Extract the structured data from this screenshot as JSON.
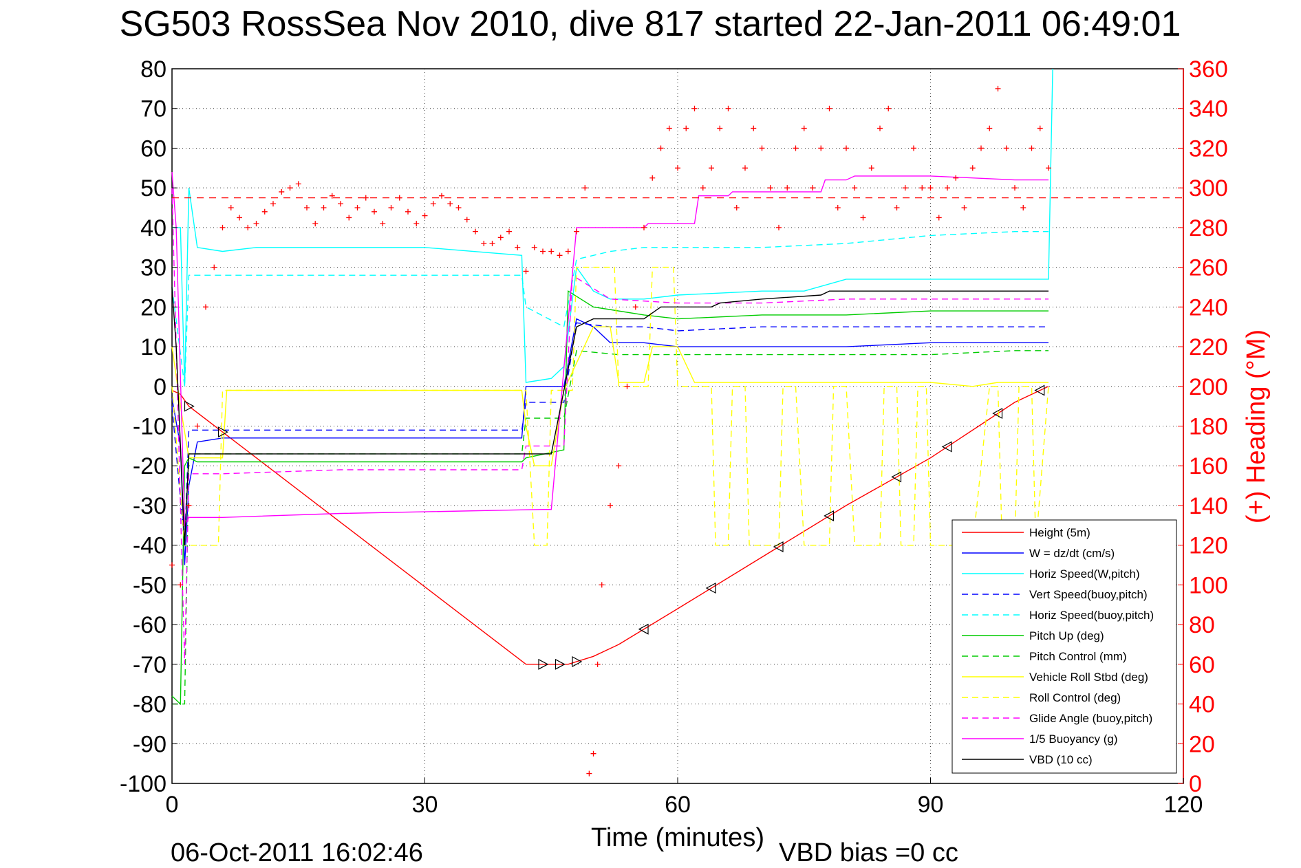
{
  "title": "SG503 RossSea Nov 2010, dive 817 started 22-Jan-2011 06:49:01",
  "footer_timestamp": "06-Oct-2011 16:02:46",
  "vbd_bias": "VBD bias =0 cc",
  "chart_data": {
    "type": "line",
    "xlabel": "Time (minutes)",
    "ylabel": "",
    "y2label": "(+) Heading (°M)",
    "xlim": [
      0,
      120
    ],
    "ylim": [
      -100,
      80
    ],
    "y2lim": [
      0,
      360
    ],
    "xticks": [
      0,
      30,
      60,
      90,
      120
    ],
    "yticks": [
      80,
      70,
      60,
      50,
      40,
      30,
      20,
      10,
      0,
      -10,
      -20,
      -30,
      -40,
      -50,
      -60,
      -70,
      -80,
      -90,
      -100
    ],
    "y2ticks": [
      360,
      340,
      320,
      300,
      280,
      260,
      240,
      220,
      200,
      180,
      160,
      140,
      120,
      100,
      80,
      60,
      40,
      20,
      0
    ],
    "grid": true,
    "legend_position": "lower-right",
    "heading_reference": 295,
    "series": [
      {
        "name": "Height (5m)",
        "color": "#ff0000",
        "style": "solid",
        "x": [
          0,
          1,
          2,
          42,
          44,
          47,
          50,
          53,
          60,
          70,
          80,
          90,
          100,
          104
        ],
        "y": [
          -1,
          -2,
          -5,
          -70,
          -70,
          -70,
          -68,
          -65,
          -56,
          -43,
          -30,
          -18,
          -4,
          0
        ]
      },
      {
        "name": "W = dz/dt (cm/s)",
        "color": "#0000ff",
        "style": "solid",
        "x": [
          0,
          1,
          1.5,
          2,
          3,
          6,
          10,
          20,
          30,
          41.5,
          42,
          45,
          46.5,
          48,
          50,
          52,
          56,
          60,
          70,
          80,
          90,
          100,
          104
        ],
        "y": [
          -3,
          -15,
          -45,
          -25,
          -14,
          -13,
          -13,
          -13,
          -13,
          -13,
          0,
          0,
          0,
          17,
          15,
          11,
          11,
          10,
          10,
          10,
          11,
          11,
          11
        ]
      },
      {
        "name": "Horiz Speed(W,pitch)",
        "color": "#00ffff",
        "style": "solid",
        "x": [
          0,
          1,
          1.5,
          2,
          3,
          6,
          10,
          20,
          30,
          41.5,
          42,
          45,
          46.5,
          48,
          50,
          52,
          56,
          60,
          70,
          75,
          80,
          90,
          100,
          104,
          104.5
        ],
        "y": [
          40,
          40,
          0,
          50,
          35,
          34,
          35,
          35,
          35,
          33,
          1,
          2,
          5,
          30,
          24,
          22,
          22,
          23,
          24,
          24,
          27,
          27,
          27,
          27,
          80
        ]
      },
      {
        "name": "Vert Speed(buoy,pitch)",
        "color": "#0000ff",
        "style": "dashed",
        "x": [
          0,
          1.5,
          2,
          6,
          20,
          41.5,
          42,
          46.5,
          48,
          52,
          56,
          60,
          70,
          80,
          90,
          100,
          104
        ],
        "y": [
          -5,
          -40,
          -11,
          -11,
          -11,
          -11,
          -4,
          -4,
          16,
          15,
          15,
          14,
          15,
          15,
          15,
          15,
          15
        ]
      },
      {
        "name": "Horiz Speed(buoy,pitch)",
        "color": "#00ffff",
        "style": "dashed",
        "x": [
          0,
          1.5,
          2,
          6,
          20,
          41.5,
          42,
          46.5,
          48,
          52,
          56,
          60,
          70,
          80,
          90,
          100,
          104
        ],
        "y": [
          25,
          0,
          28,
          28,
          28,
          28,
          20,
          15,
          32,
          34,
          35,
          35,
          35,
          36,
          38,
          39,
          39
        ]
      },
      {
        "name": "Pitch Up (deg)",
        "color": "#00cc00",
        "style": "solid",
        "x": [
          0,
          1,
          1.5,
          2,
          3,
          6,
          20,
          41.5,
          42,
          46.5,
          47,
          50,
          56,
          60,
          70,
          80,
          90,
          100,
          104
        ],
        "y": [
          -78,
          -80,
          -20,
          -18,
          -19,
          -19,
          -19,
          -19,
          -18,
          -16,
          24,
          20,
          18,
          17,
          18,
          18,
          19,
          19,
          19
        ]
      },
      {
        "name": "Pitch Control (mm)",
        "color": "#00cc00",
        "style": "dashed",
        "x": [
          0,
          1.5,
          2,
          6,
          20,
          41.5,
          42,
          46.5,
          48,
          53,
          60,
          70,
          80,
          90,
          100,
          104
        ],
        "y": [
          -80,
          -80,
          -17,
          -17,
          -17,
          -17,
          -8,
          -8,
          9,
          8,
          8,
          8,
          8,
          8,
          9,
          9
        ]
      },
      {
        "name": "Vehicle Roll Stbd (deg)",
        "color": "#ffff00",
        "style": "solid",
        "x": [
          0,
          1,
          2,
          6,
          6.5,
          20,
          41.5,
          42,
          43,
          45,
          46.5,
          50,
          52,
          53,
          56,
          57,
          60,
          62,
          70,
          80,
          90,
          95,
          98,
          100,
          104
        ],
        "y": [
          10,
          -5,
          -18,
          -18,
          -1,
          -1,
          -1,
          -10,
          -20,
          -20,
          -1,
          15,
          15,
          1,
          1,
          10,
          10,
          1,
          1,
          1,
          1,
          0,
          1,
          1,
          1
        ]
      },
      {
        "name": "Roll Control (deg)",
        "color": "#ffff00",
        "style": "dashed",
        "x": [
          0,
          1.5,
          2,
          5.5,
          6,
          42,
          43,
          44.5,
          45,
          47.5,
          48,
          52.5,
          53,
          56.5,
          57,
          59.5,
          60,
          64,
          64.5,
          66,
          66.5,
          68,
          68.5,
          72,
          72.5,
          74,
          75,
          78,
          78.5,
          80,
          81,
          84,
          84.5,
          86,
          86.5,
          88,
          88.5,
          89.5,
          90,
          95,
          97,
          98,
          98.5,
          100,
          100.5,
          102,
          102.5,
          104
        ],
        "y": [
          0,
          -40,
          -40,
          -40,
          -1,
          -1,
          -40,
          -40,
          -1,
          -1,
          30,
          30,
          0,
          0,
          30,
          30,
          0,
          0,
          -40,
          -40,
          0,
          0,
          -40,
          -40,
          0,
          0,
          -40,
          -40,
          0,
          0,
          -40,
          -40,
          0,
          0,
          -40,
          -40,
          0,
          0,
          -40,
          -40,
          0,
          0,
          -40,
          -40,
          0,
          0,
          -40,
          0
        ]
      },
      {
        "name": "Glide Angle (buoy,pitch)",
        "color": "#ff00ff",
        "style": "dashed",
        "x": [
          0,
          1.5,
          2,
          6,
          20,
          41.5,
          42,
          46.5,
          47.5,
          52,
          60,
          70,
          80,
          90,
          100,
          104
        ],
        "y": [
          50,
          -70,
          -22,
          -22,
          -21,
          -21,
          -15,
          -15,
          28,
          22,
          21,
          21,
          22,
          22,
          22,
          22
        ]
      },
      {
        "name": "1/5 Buoyancy (g)",
        "color": "#ff00ff",
        "style": "solid",
        "x": [
          0,
          0.5,
          1.5,
          2,
          6,
          20,
          44,
          45,
          48,
          50,
          56,
          56.5,
          62,
          62.5,
          66,
          66.5,
          70,
          77,
          77.5,
          80,
          81,
          90,
          100,
          104
        ],
        "y": [
          54,
          40,
          -35,
          -33,
          -33,
          -32,
          -31,
          -31,
          40,
          40,
          40,
          41,
          41,
          48,
          48,
          49,
          49,
          49,
          52,
          52,
          53,
          53,
          52,
          52
        ]
      },
      {
        "name": "VBD (10 cc)",
        "color": "#000000",
        "style": "solid",
        "x": [
          0,
          0.5,
          1.5,
          2,
          6,
          20,
          44,
          45,
          48,
          50,
          56,
          58,
          60,
          64,
          65,
          70,
          77,
          78,
          104
        ],
        "y": [
          25,
          10,
          -40,
          -17,
          -17,
          -17,
          -17,
          -17,
          15,
          17,
          17,
          20,
          20,
          20,
          21,
          22,
          23,
          24,
          24
        ]
      }
    ],
    "heading_series": {
      "name": "Heading",
      "axis": "right",
      "marker": "+",
      "color": "#ff0000",
      "x": [
        0,
        1,
        2,
        3,
        4,
        5,
        6,
        7,
        8,
        9,
        10,
        11,
        12,
        13,
        14,
        15,
        16,
        17,
        18,
        19,
        20,
        21,
        22,
        23,
        24,
        25,
        26,
        27,
        28,
        29,
        30,
        31,
        32,
        33,
        34,
        35,
        36,
        37,
        38,
        39,
        40,
        41,
        42,
        43,
        44,
        45,
        46,
        47,
        48,
        49,
        49.5,
        50,
        50.5,
        51,
        52,
        53,
        54,
        55,
        56,
        57,
        58,
        59,
        60,
        61,
        62,
        63,
        64,
        65,
        66,
        67,
        68,
        69,
        70,
        71,
        72,
        73,
        74,
        75,
        76,
        77,
        78,
        79,
        80,
        81,
        82,
        83,
        84,
        85,
        86,
        87,
        88,
        89,
        90,
        91,
        92,
        93,
        94,
        95,
        96,
        97,
        98,
        99,
        100,
        101,
        102,
        103,
        104
      ],
      "y": [
        110,
        100,
        140,
        180,
        240,
        260,
        280,
        290,
        285,
        280,
        282,
        288,
        292,
        298,
        300,
        302,
        290,
        282,
        290,
        296,
        292,
        285,
        290,
        295,
        288,
        282,
        290,
        295,
        288,
        282,
        286,
        292,
        296,
        292,
        290,
        284,
        278,
        272,
        272,
        275,
        278,
        270,
        258,
        270,
        268,
        268,
        266,
        268,
        278,
        300,
        5,
        15,
        60,
        100,
        140,
        160,
        200,
        240,
        280,
        305,
        320,
        330,
        310,
        330,
        340,
        300,
        310,
        330,
        340,
        290,
        310,
        330,
        320,
        300,
        280,
        300,
        320,
        330,
        300,
        320,
        340,
        290,
        320,
        300,
        285,
        310,
        330,
        340,
        290,
        300,
        320,
        300,
        300,
        285,
        300,
        305,
        290,
        310,
        320,
        330,
        350,
        320,
        300,
        290,
        320,
        330,
        310
      ]
    }
  }
}
